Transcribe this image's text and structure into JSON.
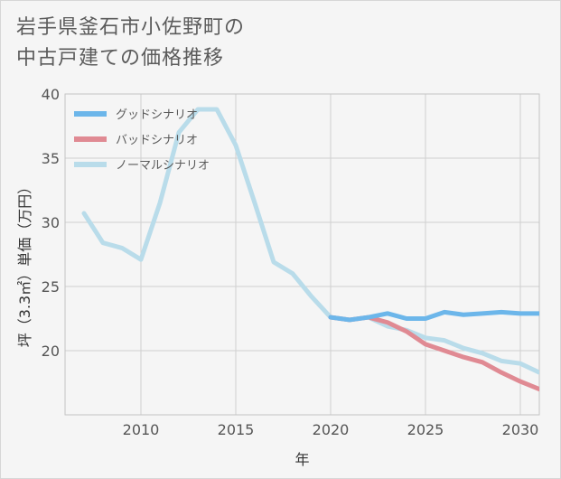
{
  "title_lines": [
    "岩手県釜石市小佐野町の",
    "中古戸建ての価格推移"
  ],
  "chart_data": {
    "type": "line",
    "title": "岩手県釜石市小佐野町の中古戸建ての価格推移",
    "xlabel": "年",
    "ylabel": "坪（3.3㎡）単価（万円）",
    "xlim": [
      2006,
      2031
    ],
    "ylim": [
      15,
      40
    ],
    "xticks": [
      2010,
      2015,
      2020,
      2025,
      2030
    ],
    "yticks": [
      20,
      25,
      30,
      35,
      40
    ],
    "grid": true,
    "legend_position": "top-left",
    "series": [
      {
        "name": "グッドシナリオ",
        "color": "#6cb6ea",
        "x": [
          2020,
          2021,
          2022,
          2023,
          2024,
          2025,
          2026,
          2027,
          2028,
          2029,
          2030,
          2031
        ],
        "values": [
          22.6,
          22.4,
          22.6,
          22.9,
          22.5,
          22.5,
          23.0,
          22.8,
          22.9,
          23.0,
          22.9,
          22.9
        ]
      },
      {
        "name": "バッドシナリオ",
        "color": "#e08a93",
        "x": [
          2020,
          2021,
          2022,
          2023,
          2024,
          2025,
          2026,
          2027,
          2028,
          2029,
          2030,
          2031
        ],
        "values": [
          22.6,
          22.4,
          22.6,
          22.2,
          21.5,
          20.5,
          20.0,
          19.5,
          19.1,
          18.3,
          17.6,
          17.0
        ]
      },
      {
        "name": "ノーマルシナリオ",
        "color": "#b9dcea",
        "x": [
          2007,
          2008,
          2009,
          2010,
          2011,
          2012,
          2013,
          2014,
          2015,
          2016,
          2017,
          2018,
          2019,
          2020,
          2021,
          2022,
          2023,
          2024,
          2025,
          2026,
          2027,
          2028,
          2029,
          2030,
          2031
        ],
        "values": [
          30.7,
          28.4,
          28.0,
          27.1,
          31.5,
          37.0,
          38.8,
          38.8,
          36.0,
          31.5,
          26.9,
          26.0,
          24.2,
          22.6,
          22.4,
          22.6,
          21.9,
          21.6,
          21.0,
          20.8,
          20.2,
          19.8,
          19.2,
          19.0,
          18.3
        ]
      }
    ]
  }
}
